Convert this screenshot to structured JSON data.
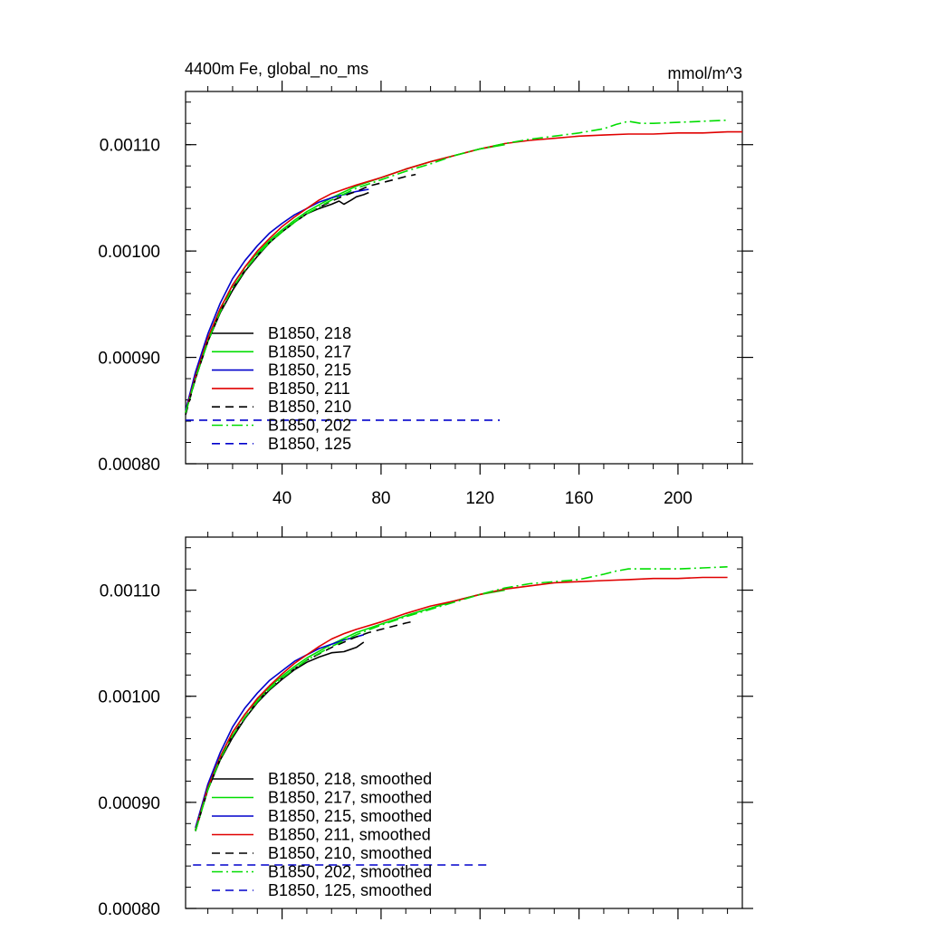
{
  "header": {
    "left_title": "4400m Fe, global_no_ms",
    "right_title": "mmol/m^3"
  },
  "chart_data": [
    {
      "type": "line",
      "panel": "top",
      "xlim": [
        1,
        226
      ],
      "ylim": [
        0.0008,
        0.00115
      ],
      "x_ticks": [
        40,
        80,
        120,
        160,
        200
      ],
      "x_tick_labels": [
        "40",
        "80",
        "120",
        "160",
        "200"
      ],
      "y_ticks": [
        0.0008,
        0.0009,
        0.001,
        0.0011
      ],
      "y_tick_labels": [
        "0.00080",
        "0.00090",
        "0.00100",
        "0.00110"
      ],
      "legend_position": "bottom-left",
      "series": [
        {
          "name": "B1850, 218",
          "color": "#000000",
          "dash": "solid",
          "x": [
            1,
            5,
            10,
            15,
            20,
            25,
            30,
            35,
            40,
            45,
            50,
            55,
            60,
            63,
            65,
            68,
            70,
            73,
            75
          ],
          "y": [
            0.000848,
            0.00088,
            0.000915,
            0.000942,
            0.000963,
            0.000981,
            0.000995,
            0.001008,
            0.001018,
            0.001027,
            0.001035,
            0.00104,
            0.001044,
            0.001047,
            0.001044,
            0.001048,
            0.001051,
            0.001053,
            0.001055
          ]
        },
        {
          "name": "B1850, 217",
          "color": "#00dd00",
          "dash": "solid",
          "x": [
            1,
            5,
            10,
            15,
            20,
            25,
            30,
            35,
            40,
            45,
            50,
            60,
            70,
            80,
            90,
            100,
            110,
            120,
            130
          ],
          "y": [
            0.000848,
            0.000882,
            0.000918,
            0.000946,
            0.000968,
            0.000985,
            0.000998,
            0.00101,
            0.00102,
            0.001029,
            0.001037,
            0.00105,
            0.001061,
            0.001069,
            0.001077,
            0.001084,
            0.00109,
            0.001096,
            0.0011
          ]
        },
        {
          "name": "B1850, 215",
          "color": "#0000cc",
          "dash": "solid",
          "x": [
            1,
            5,
            10,
            15,
            20,
            25,
            30,
            35,
            40,
            45,
            50,
            55,
            60,
            65,
            70,
            75
          ],
          "y": [
            0.00085,
            0.000886,
            0.000922,
            0.000951,
            0.000974,
            0.000991,
            0.001005,
            0.001017,
            0.001026,
            0.001034,
            0.00104,
            0.001046,
            0.00105,
            0.001053,
            0.001056,
            0.001058
          ]
        },
        {
          "name": "B1850, 211",
          "color": "#e00000",
          "dash": "solid",
          "x": [
            1,
            5,
            10,
            15,
            20,
            25,
            30,
            35,
            40,
            45,
            50,
            55,
            60,
            65,
            70,
            80,
            90,
            100,
            110,
            120,
            130,
            140,
            150,
            160,
            170,
            180,
            190,
            200,
            210,
            220,
            226
          ],
          "y": [
            0.000848,
            0.000882,
            0.000918,
            0.000946,
            0.000968,
            0.000985,
            0.001,
            0.001012,
            0.001023,
            0.001032,
            0.00104,
            0.001048,
            0.001054,
            0.001058,
            0.001062,
            0.001069,
            0.001077,
            0.001084,
            0.00109,
            0.001096,
            0.001101,
            0.001104,
            0.001106,
            0.001108,
            0.001109,
            0.00111,
            0.00111,
            0.001111,
            0.001111,
            0.001112,
            0.001112
          ]
        },
        {
          "name": "B1850, 210",
          "color": "#000000",
          "dash": "dash",
          "x": [
            1,
            5,
            10,
            15,
            20,
            25,
            30,
            35,
            40,
            45,
            50,
            55,
            60,
            65,
            70,
            75,
            80,
            85,
            90,
            94
          ],
          "y": [
            0.000846,
            0.00088,
            0.000915,
            0.000943,
            0.000965,
            0.000982,
            0.000996,
            0.001008,
            0.001018,
            0.001027,
            0.001035,
            0.001041,
            0.001047,
            0.001052,
            0.001056,
            0.001061,
            0.001064,
            0.001067,
            0.00107,
            0.001072
          ]
        },
        {
          "name": "B1850, 202",
          "color": "#00dd00",
          "dash": "dashdot",
          "x": [
            1,
            5,
            10,
            15,
            20,
            25,
            30,
            35,
            40,
            45,
            50,
            60,
            70,
            80,
            90,
            100,
            110,
            120,
            130,
            140,
            150,
            160,
            170,
            175,
            180,
            185,
            190,
            200,
            210,
            220
          ],
          "y": [
            0.000848,
            0.00088,
            0.000915,
            0.000943,
            0.000965,
            0.000982,
            0.000996,
            0.001008,
            0.001018,
            0.001027,
            0.001035,
            0.001048,
            0.001059,
            0.001067,
            0.001075,
            0.001082,
            0.00109,
            0.001096,
            0.001101,
            0.001105,
            0.001108,
            0.001111,
            0.001115,
            0.001119,
            0.001122,
            0.00112,
            0.00112,
            0.001121,
            0.001122,
            0.001123
          ]
        },
        {
          "name": "B1850, 125",
          "color": "#0000cc",
          "dash": "dash",
          "x": [
            1,
            128
          ],
          "y": [
            0.000841,
            0.000841
          ]
        }
      ]
    },
    {
      "type": "line",
      "panel": "bottom",
      "xlim": [
        1,
        226
      ],
      "ylim": [
        0.0008,
        0.00115
      ],
      "y_ticks": [
        0.0008,
        0.0009,
        0.001,
        0.0011
      ],
      "y_tick_labels": [
        "0.00080",
        "0.00090",
        "0.00100",
        "0.00110"
      ],
      "legend_position": "bottom-left",
      "series": [
        {
          "name": "B1850, 218, smoothed",
          "color": "#000000",
          "dash": "solid",
          "x": [
            5,
            10,
            15,
            20,
            25,
            30,
            35,
            40,
            45,
            50,
            55,
            60,
            65,
            70,
            73
          ],
          "y": [
            0.000873,
            0.000912,
            0.00094,
            0.000961,
            0.000979,
            0.000994,
            0.001006,
            0.001016,
            0.001025,
            0.001032,
            0.001037,
            0.001041,
            0.001042,
            0.001046,
            0.001051
          ]
        },
        {
          "name": "B1850, 217, smoothed",
          "color": "#00dd00",
          "dash": "solid",
          "x": [
            5,
            10,
            15,
            20,
            25,
            30,
            35,
            40,
            45,
            50,
            60,
            70,
            80,
            90,
            100,
            110,
            120,
            130
          ],
          "y": [
            0.000874,
            0.000914,
            0.000943,
            0.000966,
            0.000983,
            0.000997,
            0.001009,
            0.001019,
            0.001028,
            0.001036,
            0.001049,
            0.00106,
            0.001068,
            0.001076,
            0.001083,
            0.00109,
            0.001096,
            0.0011
          ]
        },
        {
          "name": "B1850, 215, smoothed",
          "color": "#0000cc",
          "dash": "solid",
          "x": [
            5,
            10,
            15,
            20,
            25,
            30,
            35,
            40,
            45,
            50,
            55,
            60,
            65,
            70,
            73
          ],
          "y": [
            0.000876,
            0.000917,
            0.000947,
            0.000971,
            0.000989,
            0.001003,
            0.001015,
            0.001024,
            0.001033,
            0.001039,
            0.001045,
            0.001049,
            0.001053,
            0.001056,
            0.001058
          ]
        },
        {
          "name": "B1850, 211, smoothed",
          "color": "#e00000",
          "dash": "solid",
          "x": [
            5,
            10,
            15,
            20,
            25,
            30,
            35,
            40,
            45,
            50,
            55,
            60,
            65,
            70,
            80,
            90,
            100,
            110,
            120,
            130,
            140,
            150,
            160,
            170,
            180,
            190,
            200,
            210,
            220
          ],
          "y": [
            0.000874,
            0.000914,
            0.000943,
            0.000966,
            0.000983,
            0.000998,
            0.00101,
            0.001021,
            0.001031,
            0.001039,
            0.001047,
            0.001054,
            0.001059,
            0.001063,
            0.00107,
            0.001078,
            0.001085,
            0.00109,
            0.001096,
            0.001101,
            0.001104,
            0.001107,
            0.001108,
            0.001109,
            0.00111,
            0.001111,
            0.001111,
            0.001112,
            0.001112
          ]
        },
        {
          "name": "B1850, 210, smoothed",
          "color": "#000000",
          "dash": "dash",
          "x": [
            5,
            10,
            15,
            20,
            25,
            30,
            35,
            40,
            45,
            50,
            55,
            60,
            65,
            70,
            75,
            80,
            85,
            90,
            92
          ],
          "y": [
            0.000873,
            0.000912,
            0.000941,
            0.000963,
            0.00098,
            0.000995,
            0.001007,
            0.001017,
            0.001026,
            0.001034,
            0.00104,
            0.001046,
            0.001051,
            0.001056,
            0.00106,
            0.001063,
            0.001066,
            0.001069,
            0.00107
          ]
        },
        {
          "name": "B1850, 202, smoothed",
          "color": "#00dd00",
          "dash": "dashdot",
          "x": [
            5,
            10,
            15,
            20,
            25,
            30,
            35,
            40,
            45,
            50,
            60,
            70,
            80,
            90,
            100,
            110,
            120,
            130,
            140,
            150,
            160,
            170,
            175,
            180,
            190,
            200,
            210,
            220
          ],
          "y": [
            0.000873,
            0.000912,
            0.000941,
            0.000963,
            0.00098,
            0.000995,
            0.001007,
            0.001017,
            0.001026,
            0.001034,
            0.001047,
            0.001058,
            0.001067,
            0.001075,
            0.001082,
            0.001089,
            0.001096,
            0.001102,
            0.001106,
            0.001108,
            0.00111,
            0.001115,
            0.001118,
            0.00112,
            0.00112,
            0.00112,
            0.001121,
            0.001122
          ]
        },
        {
          "name": "B1850, 125, smoothed",
          "color": "#0000cc",
          "dash": "dash",
          "x": [
            4,
            124
          ],
          "y": [
            0.000841,
            0.000841
          ]
        }
      ]
    }
  ]
}
